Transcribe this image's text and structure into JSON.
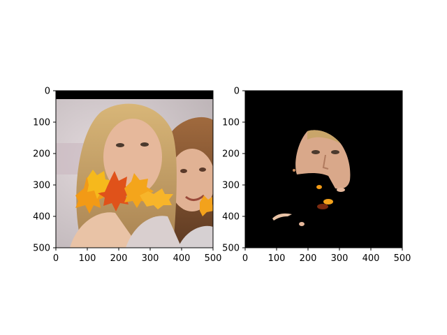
{
  "chart_data": [
    {
      "type": "image",
      "panel": "left",
      "content": "photo of two young women with autumn maple-leaf overlay on the lower face region",
      "xlim": [
        0,
        500
      ],
      "ylim": [
        500,
        0
      ],
      "xticks": [
        0,
        100,
        200,
        300,
        400,
        500
      ],
      "yticks": [
        0,
        100,
        200,
        300,
        400,
        500
      ],
      "xlabel": "",
      "ylabel": "",
      "title": "",
      "grid": false
    },
    {
      "type": "image",
      "panel": "right",
      "content": "masked version of the photo: black background with only the face region of the left person visible",
      "xlim": [
        0,
        500
      ],
      "ylim": [
        500,
        0
      ],
      "xticks": [
        0,
        100,
        200,
        300,
        400,
        500
      ],
      "yticks": [
        0,
        100,
        200,
        300,
        400,
        500
      ],
      "xlabel": "",
      "ylabel": "",
      "title": "",
      "grid": false
    }
  ],
  "colors": {
    "background": "#ffffff",
    "mask": "#000000",
    "skin": "#d9a88a",
    "hair_blonde": "#c9a56a",
    "hair_brown": "#8a5a35",
    "leaf_orange": "#f29a16",
    "leaf_red": "#e0521a",
    "leaf_yellow": "#f6b91c",
    "photo_bg": "#cfc7c9"
  }
}
